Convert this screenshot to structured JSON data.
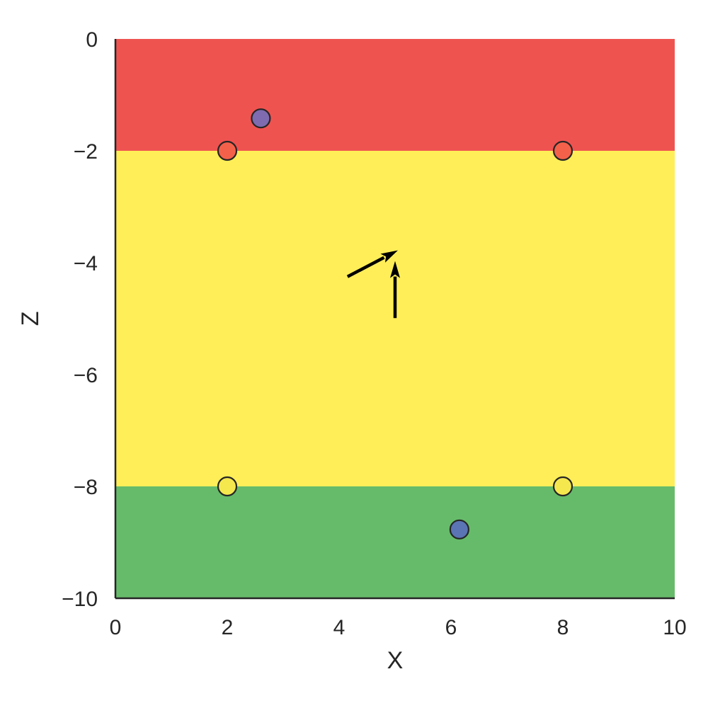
{
  "chart_data": {
    "type": "scatter",
    "title": "",
    "xlabel": "X",
    "ylabel": "Z",
    "xlim": [
      0,
      10
    ],
    "ylim": [
      -10,
      0
    ],
    "grid": false,
    "x_ticks": [
      0,
      2,
      4,
      6,
      8,
      10
    ],
    "y_ticks": [
      0,
      -2,
      -4,
      -6,
      -8,
      -10
    ],
    "x_tick_labels": [
      "0",
      "2",
      "4",
      "6",
      "8",
      "10"
    ],
    "y_tick_labels": [
      "0",
      "−2",
      "−4",
      "−6",
      "−8",
      "−10"
    ],
    "bands": [
      {
        "name": "red-zone",
        "z_from": -2,
        "z_to": 0,
        "color": "#ef5350"
      },
      {
        "name": "yellow-zone",
        "z_from": -8,
        "z_to": -2,
        "color": "#ffee58"
      },
      {
        "name": "green-zone",
        "z_from": -10,
        "z_to": -8,
        "color": "#66bb6a"
      }
    ],
    "points": [
      {
        "name": "corner-point",
        "x": 2,
        "z": -2,
        "color": "#f4614a"
      },
      {
        "name": "corner-point",
        "x": 8,
        "z": -2,
        "color": "#f4614a"
      },
      {
        "name": "corner-point",
        "x": 2,
        "z": -8,
        "color": "#f5e84e"
      },
      {
        "name": "corner-point",
        "x": 8,
        "z": -8,
        "color": "#f5e84e"
      },
      {
        "name": "purple-point",
        "x": 2.6,
        "z": -1.42,
        "color": "#7e6bb0"
      },
      {
        "name": "blue-point",
        "x": 6.15,
        "z": -8.77,
        "color": "#5a74b4"
      }
    ],
    "arrows": [
      {
        "name": "direction-arrow-diagonal",
        "x_from": 4.15,
        "z_from": -4.25,
        "x_to": 5.05,
        "z_to": -3.78,
        "color": "#000000"
      },
      {
        "name": "direction-arrow-up",
        "x_from": 5.0,
        "z_from": -4.99,
        "x_to": 5.0,
        "z_to": -3.97,
        "color": "#000000"
      }
    ]
  }
}
